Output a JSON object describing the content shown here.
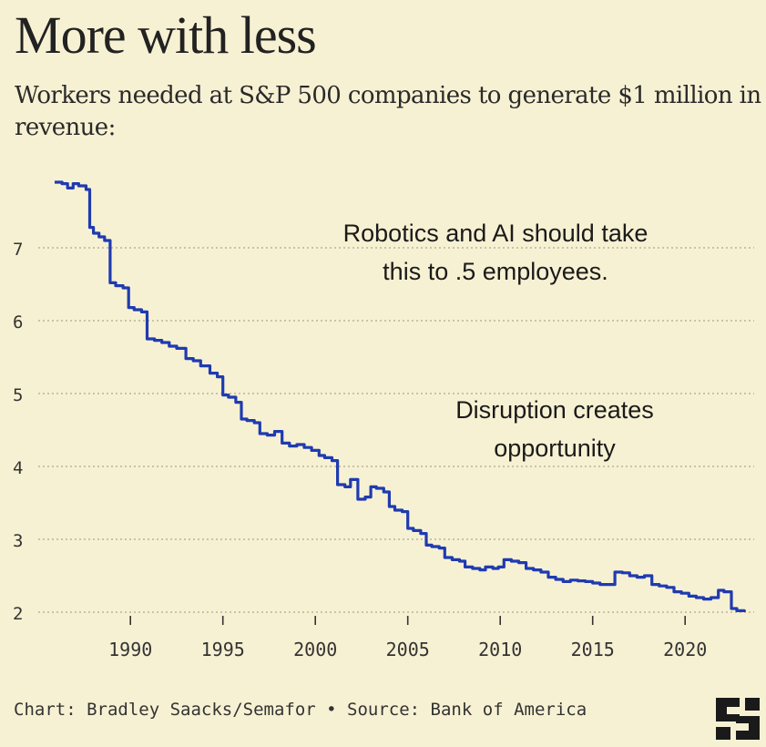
{
  "title": "More with less",
  "subtitle": "Workers needed at S&P 500 companies to generate $1 million in revenue:",
  "annotations": {
    "robotics": [
      "Robotics and AI should take",
      "this to .5 employees."
    ],
    "disruption": [
      "Disruption creates",
      "opportunity"
    ]
  },
  "footer": "Chart: Bradley Saacks/Semafor • Source: Bank of America",
  "logo_icon": "semafor-logo-icon",
  "colors": {
    "line": "#1f3bb0",
    "background": "#f7f1d3",
    "grid": "#b8b49a"
  },
  "chart_data": {
    "type": "line",
    "title": "Workers needed at S&P 500 companies to generate $1 million in revenue:",
    "xlabel": "",
    "ylabel": "",
    "xlim": [
      1985,
      2024
    ],
    "ylim": [
      1.8,
      8.0
    ],
    "y_ticks": [
      2,
      3,
      4,
      5,
      6,
      7
    ],
    "x_ticks": [
      1990,
      1995,
      2000,
      2005,
      2010,
      2015,
      2020
    ],
    "grid": "horizontal dotted",
    "series": [
      {
        "x": [
          1985.9,
          1986.3,
          1986.6,
          1986.9,
          1987.2,
          1987.6,
          1987.8,
          1988.0,
          1988.3,
          1988.6,
          1988.9,
          1989.2,
          1989.6,
          1989.9,
          1990.2,
          1990.6,
          1990.9,
          1991.3,
          1991.7,
          1992.1,
          1992.5,
          1993.0,
          1993.4,
          1993.8,
          1994.3,
          1994.7,
          1995.0,
          1995.3,
          1995.7,
          1996.0,
          1996.3,
          1996.7,
          1997.0,
          1997.4,
          1997.8,
          1998.2,
          1998.6,
          1999.0,
          1999.4,
          1999.8,
          2000.2,
          2000.5,
          2000.9,
          2001.2,
          2001.6,
          2001.9,
          2002.3,
          2002.7,
          2003.0,
          2003.3,
          2003.7,
          2004.0,
          2004.3,
          2004.7,
          2005.0,
          2005.3,
          2005.7,
          2006.0,
          2006.3,
          2006.7,
          2007.0,
          2007.4,
          2007.8,
          2008.1,
          2008.5,
          2008.9,
          2009.2,
          2009.6,
          2009.9,
          2010.2,
          2010.6,
          2011.0,
          2011.4,
          2011.8,
          2012.2,
          2012.6,
          2013.0,
          2013.4,
          2013.8,
          2014.2,
          2014.6,
          2015.0,
          2015.4,
          2015.8,
          2016.2,
          2016.6,
          2017.0,
          2017.4,
          2017.8,
          2018.2,
          2018.6,
          2019.0,
          2019.4,
          2019.8,
          2020.2,
          2020.6,
          2021.0,
          2021.4,
          2021.8,
          2022.1,
          2022.5,
          2022.8,
          2023.2
        ],
        "y": [
          7.9,
          7.88,
          7.82,
          7.88,
          7.85,
          7.8,
          7.28,
          7.2,
          7.15,
          7.1,
          6.52,
          6.48,
          6.45,
          6.18,
          6.15,
          6.12,
          5.75,
          5.73,
          5.7,
          5.65,
          5.62,
          5.48,
          5.45,
          5.38,
          5.28,
          5.23,
          4.98,
          4.95,
          4.88,
          4.65,
          4.63,
          4.6,
          4.45,
          4.43,
          4.48,
          4.32,
          4.28,
          4.3,
          4.26,
          4.22,
          4.15,
          4.12,
          4.08,
          3.75,
          3.72,
          3.82,
          3.55,
          3.58,
          3.72,
          3.7,
          3.65,
          3.45,
          3.4,
          3.38,
          3.15,
          3.12,
          3.08,
          2.92,
          2.9,
          2.88,
          2.75,
          2.72,
          2.7,
          2.62,
          2.6,
          2.58,
          2.62,
          2.6,
          2.62,
          2.72,
          2.7,
          2.68,
          2.6,
          2.58,
          2.55,
          2.48,
          2.45,
          2.42,
          2.44,
          2.43,
          2.42,
          2.4,
          2.38,
          2.38,
          2.55,
          2.54,
          2.5,
          2.48,
          2.5,
          2.38,
          2.36,
          2.34,
          2.28,
          2.26,
          2.22,
          2.2,
          2.18,
          2.2,
          2.3,
          2.28,
          2.05,
          2.02,
          2.0
        ]
      }
    ]
  }
}
